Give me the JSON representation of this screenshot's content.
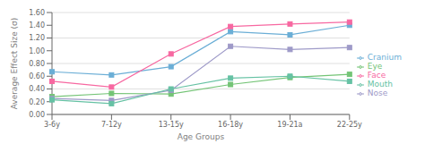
{
  "chart_data": {
    "type": "line",
    "categories": [
      "3-6y",
      "7-12y",
      "13-15y",
      "16-18y",
      "19-21a",
      "22-25y"
    ],
    "series": [
      {
        "name": "Cranium",
        "color": "#6baed6",
        "values": [
          0.67,
          0.62,
          0.75,
          1.3,
          1.25,
          1.4
        ]
      },
      {
        "name": "Face",
        "color": "#f768a1",
        "values": [
          0.52,
          0.43,
          0.95,
          1.38,
          1.42,
          1.45
        ]
      },
      {
        "name": "Eye",
        "color": "#74c476",
        "values": [
          0.28,
          0.33,
          0.32,
          0.47,
          0.58,
          0.63
        ]
      },
      {
        "name": "Nose",
        "color": "#9e9ac8",
        "values": [
          0.25,
          0.22,
          0.38,
          1.07,
          1.02,
          1.05
        ]
      },
      {
        "name": "Mouth",
        "color": "#66c2a4",
        "values": [
          0.23,
          0.17,
          0.4,
          0.57,
          0.6,
          0.52
        ]
      }
    ],
    "marker": "square",
    "xlabel": "Age Groups",
    "ylabel": "Average Effect Size (σ)",
    "ylim": [
      0.0,
      1.6
    ],
    "yticks": [
      {
        "value": 0.0,
        "label": "0.00"
      },
      {
        "value": 0.2,
        "label": "0.20"
      },
      {
        "value": 0.4,
        "label": "0.40"
      },
      {
        "value": 0.6,
        "label": "0.60"
      },
      {
        "value": 0.8,
        "label": "0.80"
      },
      {
        "value": 1.0,
        "label": "1.00"
      },
      {
        "value": 1.2,
        "label": "1.20"
      },
      {
        "value": 1.4,
        "label": "1.40"
      },
      {
        "value": 1.6,
        "label": "1.60"
      }
    ],
    "grid": true,
    "legend": "right"
  }
}
